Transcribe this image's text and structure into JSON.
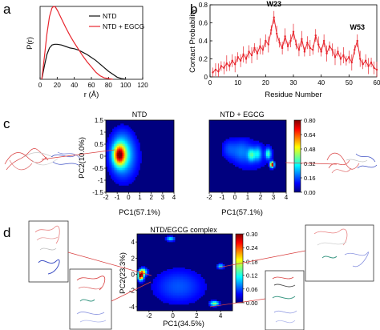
{
  "panels": {
    "a": {
      "letter": "a",
      "chart_data": {
        "type": "line",
        "xlabel": "r (Å)",
        "ylabel": "P(r)",
        "xlim": [
          0,
          120
        ],
        "ylim": [
          0,
          1
        ],
        "xticks": [
          "0",
          "20",
          "40",
          "60",
          "80",
          "100",
          "120"
        ],
        "yticks": [],
        "legend_position": "top-right",
        "series": [
          {
            "name": "NTD",
            "color": "#111111",
            "x": [
              2,
              5,
              8,
              11,
              14,
              17,
              20,
              25,
              30,
              35,
              40,
              45,
              50,
              55,
              60,
              65,
              70,
              75,
              80,
              85,
              90,
              95,
              100
            ],
            "y": [
              0.0,
              0.18,
              0.34,
              0.43,
              0.47,
              0.48,
              0.48,
              0.47,
              0.45,
              0.43,
              0.42,
              0.4,
              0.37,
              0.34,
              0.3,
              0.26,
              0.21,
              0.16,
              0.11,
              0.07,
              0.03,
              0.01,
              0.0
            ]
          },
          {
            "name": "NTD + EGCG",
            "color": "#e8262e",
            "x": [
              2,
              5,
              8,
              11,
              14,
              16,
              18,
              21,
              25,
              30,
              35,
              40,
              45,
              50,
              55,
              60,
              65,
              70,
              75,
              80,
              85
            ],
            "y": [
              0.0,
              0.3,
              0.62,
              0.86,
              0.98,
              1.0,
              0.99,
              0.93,
              0.83,
              0.71,
              0.6,
              0.5,
              0.41,
              0.32,
              0.24,
              0.17,
              0.1,
              0.05,
              0.02,
              0.01,
              0.0
            ]
          }
        ]
      }
    },
    "b": {
      "letter": "b",
      "chart_data": {
        "type": "line",
        "xlabel": "Residue Number",
        "ylabel": "Contact Probability",
        "xlim": [
          0,
          60
        ],
        "ylim": [
          0,
          0.8
        ],
        "xticks": [
          "0",
          "10",
          "20",
          "30",
          "40",
          "50",
          "60"
        ],
        "yticks": [
          "0",
          "0.2",
          "0.4",
          "0.6",
          "0.8"
        ],
        "annotations": [
          {
            "text": "W23",
            "x": 23
          },
          {
            "text": "W53",
            "x": 53
          }
        ],
        "series": [
          {
            "name": "",
            "color": "#e8262e",
            "x": [
              1,
              2,
              3,
              4,
              5,
              6,
              7,
              8,
              9,
              10,
              11,
              12,
              13,
              14,
              15,
              16,
              17,
              18,
              19,
              20,
              21,
              22,
              23,
              24,
              25,
              26,
              27,
              28,
              29,
              30,
              31,
              32,
              33,
              34,
              35,
              36,
              37,
              38,
              39,
              40,
              41,
              42,
              43,
              44,
              45,
              46,
              47,
              48,
              49,
              50,
              51,
              52,
              53,
              54,
              55,
              56,
              57,
              58,
              59,
              60
            ],
            "y": [
              0.05,
              0.08,
              0.06,
              0.12,
              0.1,
              0.15,
              0.12,
              0.18,
              0.14,
              0.22,
              0.18,
              0.25,
              0.2,
              0.28,
              0.24,
              0.32,
              0.26,
              0.34,
              0.3,
              0.4,
              0.36,
              0.52,
              0.66,
              0.48,
              0.38,
              0.32,
              0.45,
              0.34,
              0.4,
              0.5,
              0.36,
              0.3,
              0.42,
              0.28,
              0.38,
              0.32,
              0.3,
              0.46,
              0.36,
              0.28,
              0.4,
              0.26,
              0.34,
              0.3,
              0.22,
              0.28,
              0.2,
              0.24,
              0.18,
              0.22,
              0.16,
              0.3,
              0.4,
              0.2,
              0.14,
              0.18,
              0.12,
              0.16,
              0.1,
              0.08
            ]
          }
        ]
      }
    },
    "c": {
      "letter": "c",
      "chart_data": [
        {
          "type": "heatmap",
          "title": "NTD",
          "xlabel": "PC1(57.1%)",
          "ylabel": "PC2(10.0%)",
          "xlim": [
            -2,
            4
          ],
          "ylim": [
            -1.5,
            1.5
          ],
          "xticks": [
            "-2",
            "-1",
            "0",
            "1",
            "2",
            "3",
            "4"
          ],
          "yticks": [
            "-1.5",
            "-1",
            "-0.5",
            "0",
            "0.5",
            "1",
            "1.5"
          ],
          "hotspots": [
            {
              "x": -0.8,
              "y": 0.05,
              "sx": 0.35,
              "sy": 0.28,
              "v": 0.55
            },
            {
              "x": -0.6,
              "y": 0.15,
              "sx": 0.7,
              "sy": 0.6,
              "v": 0.22
            },
            {
              "x": -0.3,
              "y": -0.1,
              "sx": 1.0,
              "sy": 0.75,
              "v": 0.1
            }
          ]
        },
        {
          "type": "heatmap",
          "title": "NTD + EGCG",
          "xlabel": "PC1(57.1%)",
          "ylabel": "",
          "xlim": [
            -2,
            4
          ],
          "ylim": [
            -1.5,
            1.5
          ],
          "xticks": [
            "-2",
            "-1",
            "0",
            "1",
            "2",
            "3",
            "4"
          ],
          "yticks": [
            "-1.5",
            "-1",
            "-0.5",
            "0",
            "0.5",
            "1",
            "1.5"
          ],
          "colorbar": {
            "min": 0,
            "max": 0.8,
            "ticks": [
              "0.00",
              "0.16",
              "0.32",
              "0.48",
              "0.64",
              "0.80"
            ]
          },
          "hotspots": [
            {
              "x": 2.9,
              "y": -0.35,
              "sx": 0.1,
              "sy": 0.08,
              "v": 0.8
            },
            {
              "x": 2.6,
              "y": 0.1,
              "sx": 0.15,
              "sy": 0.15,
              "v": 0.3
            },
            {
              "x": 1.3,
              "y": 0.05,
              "sx": 0.2,
              "sy": 0.18,
              "v": 0.25
            },
            {
              "x": 1.8,
              "y": 0.1,
              "sx": 0.2,
              "sy": 0.2,
              "v": 0.2
            },
            {
              "x": 0.5,
              "y": 0.2,
              "sx": 0.5,
              "sy": 0.35,
              "v": 0.12
            },
            {
              "x": -0.5,
              "y": 0.3,
              "sx": 0.4,
              "sy": 0.3,
              "v": 0.1
            },
            {
              "x": 1.5,
              "y": 0.0,
              "sx": 1.2,
              "sy": 0.6,
              "v": 0.07
            }
          ]
        }
      ]
    },
    "d": {
      "letter": "d",
      "chart_data": {
        "type": "heatmap",
        "title": "NTD/EGCG complex",
        "xlabel": "PC1(34.5%)",
        "ylabel": "PC2(23.3%)",
        "xlim": [
          -3,
          5
        ],
        "ylim": [
          -4.5,
          5
        ],
        "xticks": [
          "-2",
          "0",
          "2",
          "4"
        ],
        "yticks": [
          "-4",
          "-2",
          "0",
          "2",
          "4"
        ],
        "colorbar": {
          "min": 0,
          "max": 0.3,
          "ticks": [
            "0.00",
            "0.06",
            "0.12",
            "0.18",
            "0.24",
            "0.30"
          ]
        },
        "hotspots": [
          {
            "x": -2.7,
            "y": -0.2,
            "sx": 0.15,
            "sy": 0.35,
            "v": 0.3
          },
          {
            "x": -2.5,
            "y": 0.3,
            "sx": 0.2,
            "sy": 0.3,
            "v": 0.18
          },
          {
            "x": 3.5,
            "y": -3.6,
            "sx": 0.25,
            "sy": 0.2,
            "v": 0.15
          },
          {
            "x": -0.2,
            "y": 4.4,
            "sx": 0.25,
            "sy": 0.2,
            "v": 0.1
          },
          {
            "x": 4.0,
            "y": 1.0,
            "sx": 0.2,
            "sy": 0.2,
            "v": 0.1
          },
          {
            "x": 0.5,
            "y": -1.5,
            "sx": 1.6,
            "sy": 1.6,
            "v": 0.05
          }
        ]
      }
    }
  },
  "colors": {
    "black_line": "#111111",
    "red_line": "#e8262e",
    "red_structure": "#d94040",
    "blue_structure": "#3d4fc4",
    "teal_structure": "#3e9a86"
  }
}
